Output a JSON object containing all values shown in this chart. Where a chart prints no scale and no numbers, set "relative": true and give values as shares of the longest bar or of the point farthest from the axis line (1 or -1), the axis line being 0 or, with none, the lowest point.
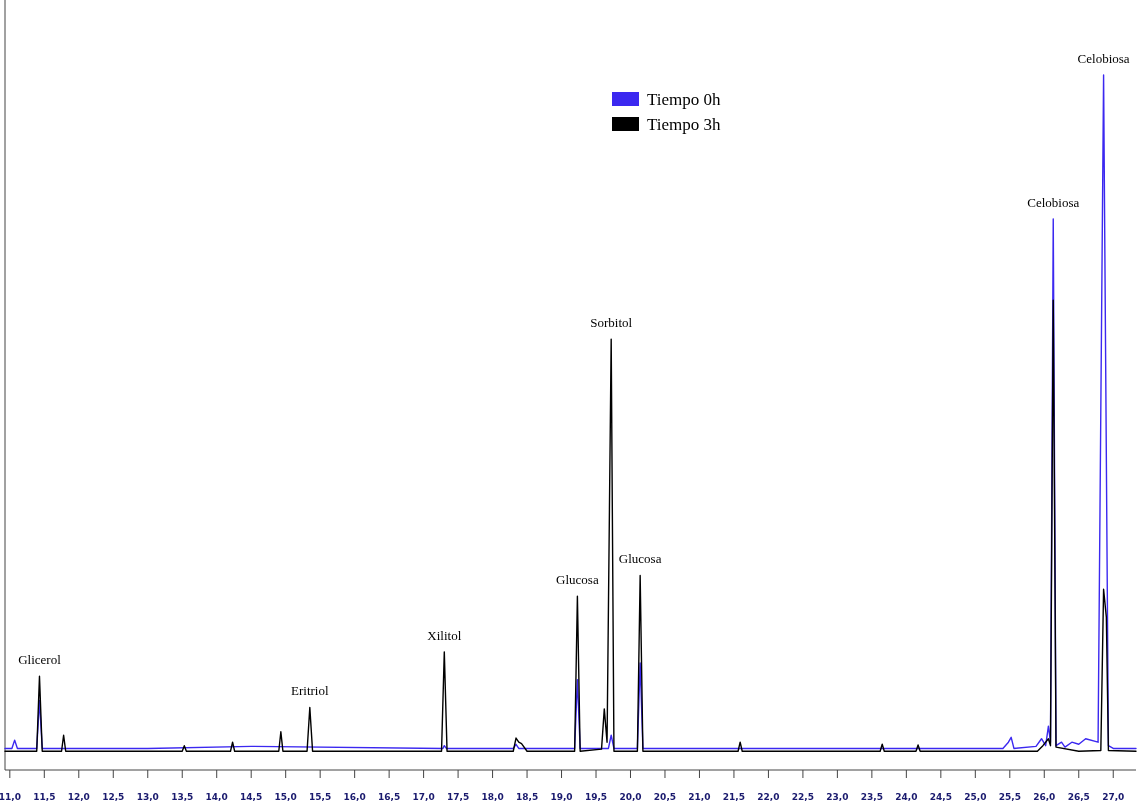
{
  "chart_data": {
    "type": "line",
    "relative": true,
    "xlim": [
      10.93,
      27.33
    ],
    "xticks": [
      {
        "value": 11,
        "label": "11,0"
      },
      {
        "value": 11.5,
        "label": "11,5"
      },
      {
        "value": 12,
        "label": "12,0"
      },
      {
        "value": 12.5,
        "label": "12,5"
      },
      {
        "value": 13,
        "label": "13,0"
      },
      {
        "value": 13.5,
        "label": "13,5"
      },
      {
        "value": 14,
        "label": "14,0"
      },
      {
        "value": 14.5,
        "label": "14,5"
      },
      {
        "value": 15,
        "label": "15,0"
      },
      {
        "value": 15.5,
        "label": "15,5"
      },
      {
        "value": 16,
        "label": "16,0"
      },
      {
        "value": 16.5,
        "label": "16,5"
      },
      {
        "value": 17,
        "label": "17,0"
      },
      {
        "value": 17.5,
        "label": "17,5"
      },
      {
        "value": 18,
        "label": "18,0"
      },
      {
        "value": 18.5,
        "label": "18,5"
      },
      {
        "value": 19,
        "label": "19,0"
      },
      {
        "value": 19.5,
        "label": "19,5"
      },
      {
        "value": 20,
        "label": "20,0"
      },
      {
        "value": 20.5,
        "label": "20,5"
      },
      {
        "value": 21,
        "label": "21,0"
      },
      {
        "value": 21.5,
        "label": "21,5"
      },
      {
        "value": 22,
        "label": "22,0"
      },
      {
        "value": 22.5,
        "label": "22,5"
      },
      {
        "value": 23,
        "label": "23,0"
      },
      {
        "value": 23.5,
        "label": "23,5"
      },
      {
        "value": 24,
        "label": "24,0"
      },
      {
        "value": 24.5,
        "label": "24,5"
      },
      {
        "value": 25,
        "label": "25,0"
      },
      {
        "value": 25.5,
        "label": "25,5"
      },
      {
        "value": 26,
        "label": "26,0"
      },
      {
        "value": 26.5,
        "label": "26,5"
      },
      {
        "value": 27,
        "label": "27,0"
      }
    ],
    "tick_labels": "x",
    "grid": false,
    "legend": "top",
    "marker": "none",
    "line_style": "solid",
    "series": [
      {
        "name": "Tiempo 0h",
        "color": "#3b28f0",
        "x": [
          10.93,
          11.03,
          11.07,
          11.11,
          11.39,
          11.43,
          11.47,
          13.0,
          14.5,
          17.28,
          17.3,
          17.33,
          18.0,
          18.3,
          18.34,
          18.38,
          19.19,
          19.23,
          19.27,
          19.68,
          19.72,
          19.76,
          20.1,
          20.14,
          20.18,
          25.4,
          25.48,
          25.52,
          25.56,
          25.88,
          25.96,
          26.02,
          26.06,
          26.09,
          26.13,
          26.17,
          26.25,
          26.3,
          26.4,
          26.5,
          26.6,
          26.78,
          26.86,
          26.93,
          27.0,
          27.33
        ],
        "values": [
          0.031,
          0.031,
          0.043,
          0.031,
          0.031,
          0.1,
          0.031,
          0.031,
          0.034,
          0.031,
          0.035,
          0.031,
          0.031,
          0.031,
          0.037,
          0.031,
          0.031,
          0.13,
          0.031,
          0.031,
          0.05,
          0.031,
          0.031,
          0.154,
          0.031,
          0.031,
          0.04,
          0.047,
          0.031,
          0.034,
          0.045,
          0.035,
          0.063,
          0.04,
          0.793,
          0.035,
          0.04,
          0.033,
          0.04,
          0.037,
          0.045,
          0.04,
          1.0,
          0.035,
          0.031,
          0.031
        ]
      },
      {
        "name": "Tiempo 3h",
        "color": "#000000",
        "x": [
          10.93,
          11.39,
          11.43,
          11.47,
          11.75,
          11.78,
          11.81,
          13.5,
          13.53,
          13.56,
          14.2,
          14.23,
          14.26,
          14.9,
          14.93,
          14.96,
          15.31,
          15.35,
          15.39,
          17.26,
          17.3,
          17.34,
          18.3,
          18.34,
          18.38,
          18.42,
          18.5,
          19.19,
          19.23,
          19.27,
          19.58,
          19.62,
          19.66,
          19.72,
          19.76,
          20.1,
          20.14,
          20.18,
          21.56,
          21.59,
          21.62,
          23.62,
          23.65,
          23.68,
          24.14,
          24.17,
          24.2,
          25.9,
          25.98,
          26.06,
          26.09,
          26.13,
          26.17,
          26.5,
          26.82,
          26.86,
          26.9,
          26.93,
          27.33
        ],
        "values": [
          0.027,
          0.027,
          0.135,
          0.027,
          0.027,
          0.05,
          0.027,
          0.027,
          0.035,
          0.027,
          0.027,
          0.04,
          0.027,
          0.027,
          0.055,
          0.027,
          0.027,
          0.09,
          0.027,
          0.027,
          0.17,
          0.027,
          0.027,
          0.046,
          0.04,
          0.038,
          0.027,
          0.027,
          0.25,
          0.027,
          0.03,
          0.088,
          0.04,
          0.62,
          0.027,
          0.027,
          0.28,
          0.027,
          0.027,
          0.04,
          0.027,
          0.027,
          0.037,
          0.027,
          0.027,
          0.036,
          0.027,
          0.027,
          0.035,
          0.045,
          0.035,
          0.676,
          0.033,
          0.027,
          0.028,
          0.26,
          0.22,
          0.028,
          0.027
        ]
      }
    ],
    "annotations": [
      {
        "text": "Glicerol",
        "x": 11.43,
        "y": 0.135
      },
      {
        "text": "Eritriol",
        "x": 15.35,
        "y": 0.09
      },
      {
        "text": "Xilitol",
        "x": 17.3,
        "y": 0.17
      },
      {
        "text": "Glucosa",
        "x": 19.23,
        "y": 0.25
      },
      {
        "text": "Sorbitol",
        "x": 19.72,
        "y": 0.62
      },
      {
        "text": "Glucosa",
        "x": 20.14,
        "y": 0.28
      },
      {
        "text": "Celobiosa",
        "x": 26.13,
        "y": 0.793
      },
      {
        "text": "Celobiosa",
        "x": 26.86,
        "y": 1.0
      }
    ]
  }
}
